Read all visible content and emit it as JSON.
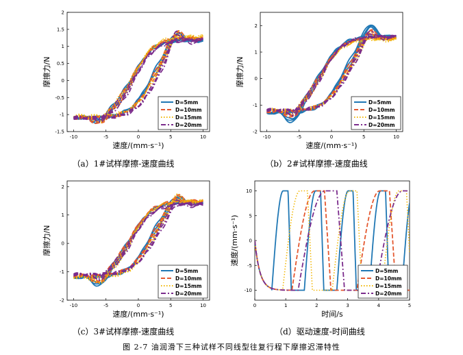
{
  "figure_caption": "图 2-7  油润滑下三种试样不同线型往复行程下摩擦迟滞特性",
  "colors": {
    "D5": "#1f77b4",
    "D10": "#e4572e",
    "D15": "#f2b705",
    "D20": "#7b2c8c"
  },
  "chart_data": [
    {
      "id": "a",
      "type": "line",
      "caption": "（a）1#试样摩擦-速度曲线",
      "xlabel": "速度/(mm·s⁻¹)",
      "ylabel": "摩擦力/N",
      "xlim": [
        -11,
        11
      ],
      "ylim": [
        -1.5,
        2
      ],
      "xticks": [
        -10,
        -5,
        0,
        5,
        10
      ],
      "xtick_labels": [
        "-10",
        "-5",
        "0",
        "5",
        "10"
      ],
      "yticks": [
        -1.5,
        -1,
        -0.5,
        0,
        0.5,
        1,
        1.5,
        2
      ],
      "ytick_labels": [
        "-1.5",
        "-1",
        "-0.5",
        "0",
        "0.5",
        "1",
        "1.5",
        "2"
      ],
      "legend_position": "bottom-right",
      "series": [
        {
          "name": "D=5mm",
          "style": "solid",
          "color_key": "D5",
          "low": -1.1,
          "high": 1.2,
          "peak": 1.55,
          "dip": -1.3,
          "x": [
            -10,
            -8,
            -6,
            -4,
            -2,
            0,
            2,
            4,
            6,
            8,
            10
          ]
        },
        {
          "name": "D=10mm",
          "style": "dash",
          "color_key": "D10",
          "low": -1.1,
          "high": 1.25,
          "peak": 1.6,
          "dip": -1.35
        },
        {
          "name": "D=15mm",
          "style": "dot",
          "color_key": "D15",
          "low": -1.05,
          "high": 1.3,
          "peak": 1.6,
          "dip": -1.3
        },
        {
          "name": "D=20mm",
          "style": "dashdot",
          "color_key": "D20",
          "low": -1.1,
          "high": 1.2,
          "peak": 1.65,
          "dip": -1.25
        }
      ],
      "hysteresis_width": 3.0,
      "center_offset": 0.5
    },
    {
      "id": "b",
      "type": "line",
      "caption": "（b）2#试样摩擦-速度曲线",
      "xlabel": "速度/(mm·s⁻¹)",
      "ylabel": "摩擦力/N",
      "xlim": [
        -11,
        11
      ],
      "ylim": [
        -2,
        2.5
      ],
      "xticks": [
        -10,
        -5,
        0,
        5,
        10
      ],
      "xtick_labels": [
        "-10",
        "-5",
        "0",
        "5",
        "10"
      ],
      "yticks": [
        -2,
        -1,
        0,
        1,
        2
      ],
      "ytick_labels": [
        "-2",
        "-1",
        "0",
        "1",
        "2"
      ],
      "legend_position": "bottom-right",
      "series": [
        {
          "name": "D=5mm",
          "style": "solid",
          "color_key": "D5",
          "low": -1.3,
          "high": 1.6,
          "peak": 2.2,
          "dip": -1.8
        },
        {
          "name": "D=10mm",
          "style": "dash",
          "color_key": "D10",
          "low": -1.25,
          "high": 1.55,
          "peak": 2.0,
          "dip": -1.6
        },
        {
          "name": "D=15mm",
          "style": "dot",
          "color_key": "D15",
          "low": -1.2,
          "high": 1.5,
          "peak": 1.9,
          "dip": -1.5
        },
        {
          "name": "D=20mm",
          "style": "dashdot",
          "color_key": "D20",
          "low": -1.2,
          "high": 1.6,
          "peak": 2.0,
          "dip": -1.5
        }
      ],
      "hysteresis_width": 3.5,
      "center_offset": 0.0
    },
    {
      "id": "c",
      "type": "line",
      "caption": "（c）3#试样摩擦-速度曲线",
      "xlabel": "速度/(mm·s⁻¹)",
      "ylabel": "摩擦力/N",
      "xlim": [
        -11,
        11
      ],
      "ylim": [
        -2,
        2.2
      ],
      "xticks": [
        -10,
        -5,
        0,
        5,
        10
      ],
      "xtick_labels": [
        "-10",
        "-5",
        "0",
        "5",
        "10"
      ],
      "yticks": [
        -2,
        -1,
        0,
        1,
        2
      ],
      "ytick_labels": [
        "-2",
        "-1",
        "0",
        "1",
        "2"
      ],
      "legend_position": "bottom-right",
      "series": [
        {
          "name": "D=5mm",
          "style": "solid",
          "color_key": "D5",
          "low": -1.2,
          "high": 1.45,
          "peak": 1.8,
          "dip": -1.6
        },
        {
          "name": "D=10mm",
          "style": "dash",
          "color_key": "D10",
          "low": -1.15,
          "high": 1.5,
          "peak": 1.85,
          "dip": -1.5
        },
        {
          "name": "D=15mm",
          "style": "dot",
          "color_key": "D15",
          "low": -1.2,
          "high": 1.5,
          "peak": 1.9,
          "dip": -1.5
        },
        {
          "name": "D=20mm",
          "style": "dashdot",
          "color_key": "D20",
          "low": -1.1,
          "high": 1.4,
          "peak": 1.7,
          "dip": -1.35
        }
      ],
      "hysteresis_width": 3.0,
      "center_offset": 0.2
    },
    {
      "id": "d",
      "type": "line",
      "caption": "（d）驱动速度-时间曲线",
      "xlabel": "时间/s",
      "ylabel": "速度/(mm·s⁻¹)",
      "xlim": [
        0,
        5
      ],
      "ylim": [
        -12,
        12
      ],
      "xticks": [
        0,
        1,
        2,
        3,
        4,
        5
      ],
      "xtick_labels": [
        "0",
        "1",
        "2",
        "3",
        "4",
        "5"
      ],
      "yticks": [
        -10,
        -5,
        0,
        5,
        10
      ],
      "ytick_labels": [
        "-10",
        "-5",
        "0",
        "5",
        "10"
      ],
      "legend_position": "bottom-right",
      "series": [
        {
          "name": "D=5mm",
          "style": "solid",
          "color_key": "D5",
          "period": 1.05,
          "start": 0.55
        },
        {
          "name": "D=10mm",
          "style": "dash",
          "color_key": "D10",
          "period": 2.1,
          "start": 1.2
        },
        {
          "name": "D=15mm",
          "style": "dot",
          "color_key": "D15",
          "period": 1.6,
          "start": 0.9
        },
        {
          "name": "D=20mm",
          "style": "dashdot",
          "color_key": "D20",
          "period": 2.5,
          "start": 1.4
        }
      ]
    }
  ]
}
